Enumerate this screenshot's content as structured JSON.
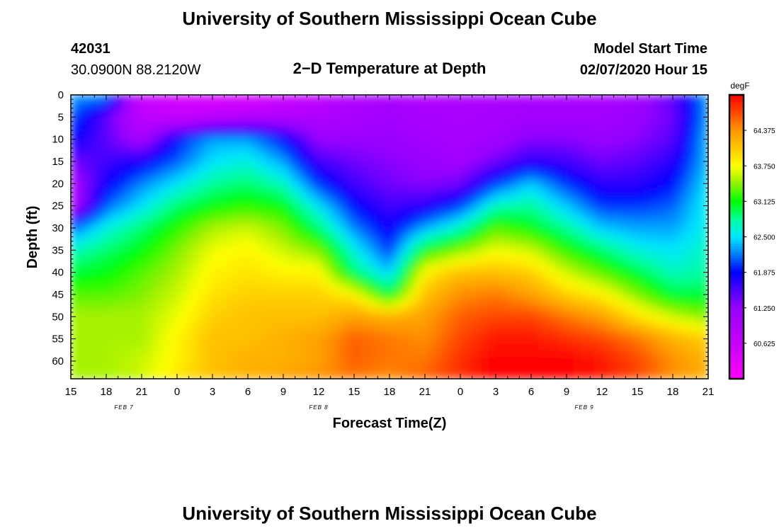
{
  "chart_data": {
    "type": "heatmap",
    "title": "University of Southern Mississippi Ocean Cube",
    "footer_title": "University of Southern Mississippi Ocean Cube",
    "station_id": "42031",
    "station_location": "30.0900N 88.2120W",
    "subtitle": "2−D Temperature at Depth",
    "model_start_label": "Model Start Time",
    "model_start_value": "02/07/2020 Hour 15",
    "xlabel": "Forecast Time(Z)",
    "ylabel": "Depth (ft)",
    "x_ticks": [
      "15",
      "18",
      "21",
      "0",
      "3",
      "6",
      "9",
      "12",
      "15",
      "18",
      "21",
      "0",
      "3",
      "6",
      "9",
      "12",
      "15",
      "18",
      "21"
    ],
    "date_labels": [
      {
        "text": "FEB 7",
        "tick_index": 1.5
      },
      {
        "text": "FEB 8",
        "tick_index": 7
      },
      {
        "text": "FEB 9",
        "tick_index": 14.5
      }
    ],
    "y_ticks": [
      "0",
      "5",
      "10",
      "15",
      "20",
      "25",
      "30",
      "35",
      "40",
      "45",
      "50",
      "55",
      "60"
    ],
    "ylim": [
      0,
      64
    ],
    "colorbar": {
      "unit": "degF",
      "tick_labels": [
        "64.375",
        "63.750",
        "63.125",
        "62.500",
        "61.875",
        "61.250",
        "60.625"
      ],
      "tick_values": [
        64.375,
        63.75,
        63.125,
        62.5,
        61.875,
        61.25,
        60.625
      ],
      "range": [
        60.0,
        65.0
      ]
    },
    "depth_levels": [
      0,
      5,
      10,
      15,
      20,
      25,
      30,
      35,
      40,
      45,
      50,
      55,
      60,
      64
    ],
    "temperature_grid": [
      [
        62.3,
        62.1,
        61.9,
        61.4,
        61.0,
        60.9,
        62.1,
        62.7,
        63.0,
        63.3,
        63.5,
        63.5,
        63.5,
        63.5
      ],
      [
        62.3,
        61.5,
        61.5,
        61.6,
        61.8,
        62.1,
        62.6,
        62.9,
        63.1,
        63.3,
        63.5,
        63.5,
        63.5,
        63.5
      ],
      [
        60.6,
        60.7,
        61.0,
        61.8,
        62.2,
        62.5,
        62.9,
        63.1,
        63.3,
        63.4,
        63.5,
        63.5,
        63.6,
        63.6
      ],
      [
        60.5,
        60.6,
        61.9,
        62.1,
        62.5,
        62.9,
        63.2,
        63.4,
        63.5,
        63.6,
        63.7,
        63.8,
        63.8,
        63.9
      ],
      [
        60.4,
        60.7,
        62.3,
        62.5,
        62.8,
        63.1,
        63.5,
        63.7,
        63.8,
        63.9,
        64.0,
        64.1,
        64.1,
        64.1
      ],
      [
        60.4,
        60.8,
        62.3,
        62.6,
        62.9,
        63.2,
        63.6,
        63.8,
        63.9,
        64.0,
        64.1,
        64.1,
        64.2,
        64.2
      ],
      [
        60.5,
        60.9,
        61.9,
        62.3,
        62.7,
        63.1,
        63.4,
        63.6,
        63.8,
        64.0,
        64.1,
        64.2,
        64.2,
        64.3
      ],
      [
        60.7,
        60.9,
        61.2,
        61.6,
        62.0,
        62.5,
        62.9,
        63.4,
        63.8,
        64.0,
        64.1,
        64.3,
        64.3,
        64.4
      ],
      [
        60.9,
        61.0,
        61.2,
        61.4,
        61.6,
        61.9,
        62.2,
        62.6,
        62.9,
        63.8,
        64.3,
        64.6,
        64.6,
        64.5
      ],
      [
        61.0,
        61.1,
        61.2,
        61.3,
        61.4,
        61.6,
        61.8,
        62.0,
        62.4,
        63.0,
        64.2,
        64.5,
        64.5,
        64.4
      ],
      [
        60.9,
        61.0,
        61.1,
        61.2,
        61.3,
        61.7,
        62.3,
        63.1,
        63.8,
        64.1,
        64.3,
        64.4,
        64.5,
        64.6
      ],
      [
        61.0,
        61.0,
        61.0,
        61.1,
        61.4,
        62.0,
        62.7,
        63.4,
        64.1,
        64.4,
        64.6,
        64.7,
        64.8,
        64.8
      ],
      [
        61.0,
        61.0,
        61.1,
        61.4,
        62.0,
        62.7,
        63.3,
        63.7,
        64.1,
        64.5,
        64.7,
        64.9,
        65.0,
        65.0
      ],
      [
        61.0,
        61.1,
        61.3,
        61.7,
        62.4,
        62.8,
        63.1,
        63.6,
        64.0,
        64.3,
        64.7,
        64.9,
        65.0,
        65.0
      ],
      [
        61.0,
        61.1,
        61.3,
        61.6,
        62.0,
        62.4,
        62.8,
        63.2,
        63.6,
        64.0,
        64.5,
        64.8,
        65.0,
        65.0
      ],
      [
        61.0,
        61.1,
        61.2,
        61.4,
        61.7,
        62.0,
        62.4,
        62.9,
        63.3,
        63.8,
        64.3,
        64.7,
        64.9,
        64.9
      ],
      [
        61.1,
        61.2,
        61.3,
        61.5,
        61.7,
        62.0,
        62.3,
        62.6,
        63.0,
        63.4,
        63.9,
        64.5,
        64.7,
        64.7
      ],
      [
        61.5,
        61.4,
        61.5,
        61.7,
        61.9,
        62.1,
        62.3,
        62.5,
        62.7,
        63.0,
        63.6,
        64.2,
        64.4,
        64.4
      ],
      [
        62.3,
        62.3,
        62.4,
        62.4,
        62.5,
        62.6,
        62.6,
        62.7,
        62.8,
        63.0,
        63.4,
        64.0,
        64.2,
        64.2
      ]
    ]
  }
}
